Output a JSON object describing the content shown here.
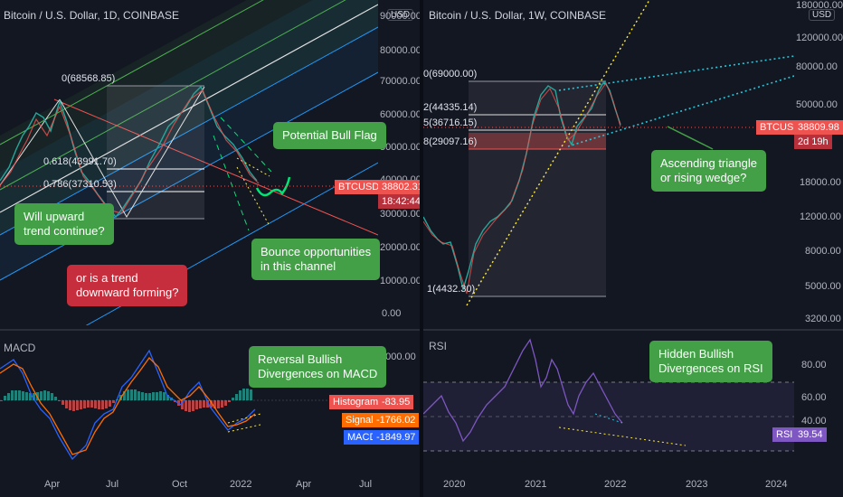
{
  "left_chart": {
    "header": "Bitcoin / U.S. Dollar, 1D, COINBASE",
    "currency": "USD",
    "price_axis": [
      "90000.00",
      "80000.00",
      "70000.00",
      "60000.00",
      "50000.00",
      "40000.00",
      "30000.00",
      "20000.00",
      "10000.00",
      "0.00"
    ],
    "fib_labels": {
      "top": "0(68568.85)",
      "f618": "0.618(43991.70)",
      "f786": "0.786(37310.53)"
    },
    "price_badge": {
      "symbol": "BTCUSD",
      "value": "38802.31",
      "countdown": "18:42:44"
    },
    "callouts": {
      "bull_flag": "Potential Bull Flag",
      "upward_1": "Will upward",
      "upward_2": "trend continue?",
      "downward_1": "or is a trend",
      "downward_2": "downward forming?",
      "bounce_1": "Bounce opportunities",
      "bounce_2": "in this channel"
    },
    "macd": {
      "title": "MACD",
      "axis_top": "4000.00",
      "histogram_label": "Histogram",
      "histogram_value": "-83.95",
      "signal_label": "Signal",
      "signal_value": "-1766.02",
      "macd_label": "MACD",
      "macd_value": "-1849.97",
      "callout_1": "Reversal Bullish",
      "callout_2": "Divergences on MACD"
    },
    "time_axis": [
      "Apr",
      "Jul",
      "Oct",
      "2022",
      "Apr",
      "Jul"
    ],
    "colors": {
      "bull": "#26a69a",
      "bear": "#ef5350",
      "macd": "#2962ff",
      "signal": "#ff6d00"
    }
  },
  "right_chart": {
    "header": "Bitcoin / U.S. Dollar, 1W, COINBASE",
    "currency": "USD",
    "price_axis": [
      "180000.00",
      "120000.00",
      "80000.00",
      "50000.00",
      "18000.00",
      "12000.00",
      "8000.00",
      "5000.00",
      "3200.00"
    ],
    "fib_labels": {
      "top": "0(69000.00)",
      "l2": "2(44335.14)",
      "l5": "5(36716.15)",
      "l8": "8(29097.16)",
      "bottom": "1(4432.30)"
    },
    "price_badge": {
      "symbol": "BTCUSD",
      "value": "38809.98",
      "countdown": "2d 19h"
    },
    "callouts": {
      "triangle_1": "Ascending triangle",
      "triangle_2": "or rising wedge?"
    },
    "rsi": {
      "title": "RSI",
      "axis": [
        "80.00",
        "60.00",
        "40.00"
      ],
      "label": "RSI",
      "value": "39.54",
      "callout_1": "Hidden Bullish",
      "callout_2": "Divergences on RSI"
    },
    "time_axis": [
      "2020",
      "2021",
      "2022",
      "2023",
      "2024"
    ],
    "colors": {
      "rsi": "#7e57c2"
    }
  }
}
